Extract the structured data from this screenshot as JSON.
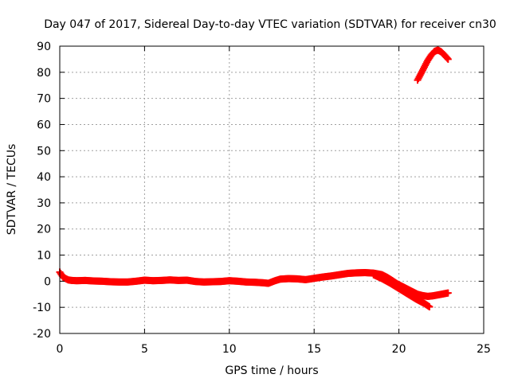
{
  "chart_data": {
    "type": "scatter",
    "title": "Day 047 of 2017, Sidereal Day-to-day VTEC variation (SDTVAR) for receiver cn30",
    "xlabel": "GPS time / hours",
    "ylabel": "SDTVAR / TECUs",
    "xlim": [
      0,
      25
    ],
    "ylim": [
      -20,
      90
    ],
    "xticks": [
      0,
      5,
      10,
      15,
      20,
      25
    ],
    "yticks": [
      -20,
      -10,
      0,
      10,
      20,
      30,
      40,
      50,
      60,
      70,
      80,
      90
    ],
    "grid": true,
    "color": "#ff0000",
    "series": [
      {
        "name": "main",
        "x": [
          0.0,
          0.1,
          0.2,
          0.35,
          0.5,
          0.7,
          1.0,
          1.5,
          2.0,
          2.5,
          3.0,
          3.5,
          4.0,
          4.5,
          5.0,
          5.5,
          6.0,
          6.5,
          7.0,
          7.5,
          8.0,
          8.5,
          9.0,
          9.5,
          10.0,
          10.5,
          11.0,
          11.5,
          12.0,
          12.3,
          12.7,
          13.0,
          13.5,
          14.0,
          14.5,
          15.0,
          15.5,
          16.0,
          16.5,
          17.0,
          17.5,
          18.0,
          18.5,
          19.0,
          19.3,
          19.6,
          19.9,
          20.2,
          20.5,
          20.8,
          21.1,
          21.4,
          21.7,
          22.0,
          22.5,
          22.9
        ],
        "y": [
          3.5,
          2.5,
          1.5,
          1.0,
          0.5,
          0.3,
          0.2,
          0.3,
          0.1,
          0.0,
          -0.2,
          -0.3,
          -0.3,
          0.0,
          0.4,
          0.2,
          0.3,
          0.5,
          0.3,
          0.4,
          -0.1,
          -0.3,
          -0.2,
          -0.1,
          0.2,
          0.0,
          -0.3,
          -0.4,
          -0.6,
          -0.8,
          0.2,
          0.8,
          1.0,
          0.9,
          0.6,
          1.1,
          1.6,
          2.0,
          2.5,
          3.0,
          3.2,
          3.3,
          3.1,
          2.5,
          1.5,
          0.3,
          -1.0,
          -2.0,
          -3.0,
          -4.0,
          -5.0,
          -5.5,
          -5.8,
          -5.6,
          -5.0,
          -4.5
        ]
      },
      {
        "name": "drop",
        "x": [
          18.5,
          19.0,
          19.5,
          20.0,
          20.5,
          21.0,
          21.5,
          21.8
        ],
        "y": [
          2.5,
          1.0,
          -0.8,
          -2.8,
          -4.8,
          -6.8,
          -8.5,
          -9.8
        ]
      },
      {
        "name": "upper",
        "x": [
          21.1,
          21.3,
          21.5,
          21.7,
          21.9,
          22.1,
          22.3,
          22.5,
          22.7,
          22.9
        ],
        "y": [
          77.0,
          79.5,
          82.0,
          84.5,
          86.5,
          88.0,
          88.5,
          87.8,
          86.5,
          85.0
        ]
      }
    ]
  }
}
